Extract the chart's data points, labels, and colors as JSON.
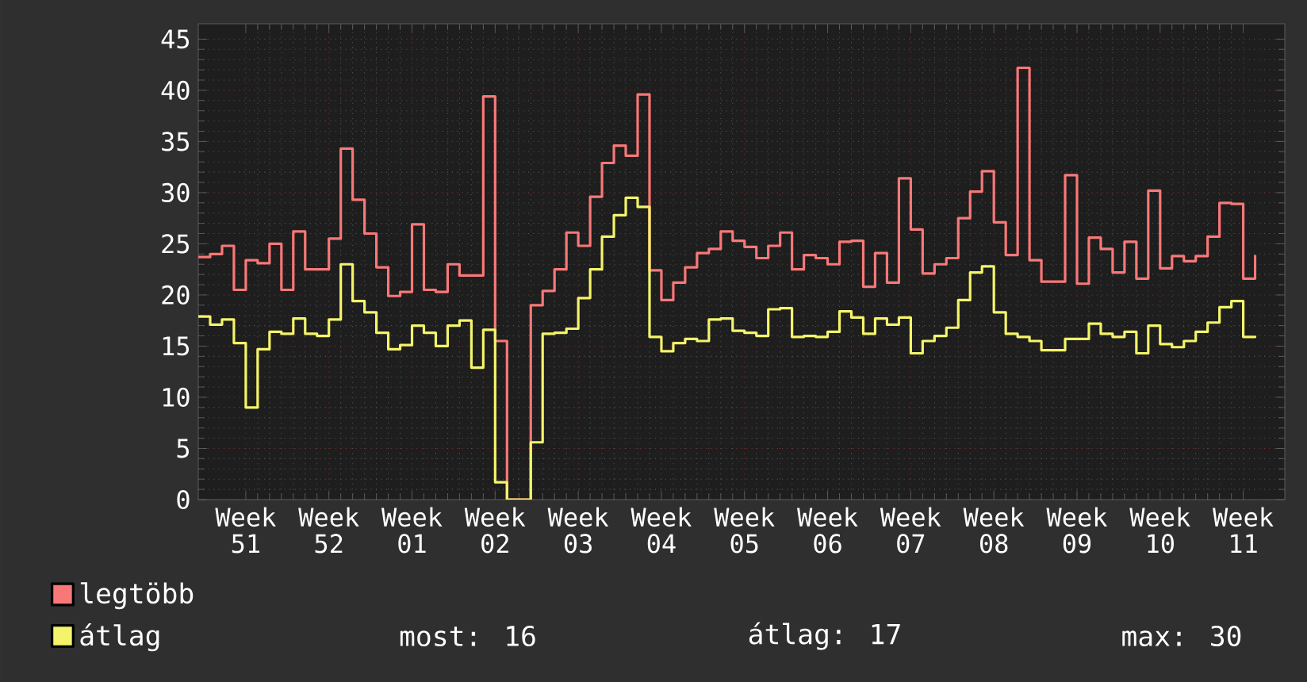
{
  "chart_data": {
    "type": "step",
    "categories": [
      null,
      null,
      null,
      null,
      "Week 51",
      null,
      null,
      null,
      null,
      null,
      null,
      "Week 52",
      null,
      null,
      null,
      null,
      null,
      null,
      "Week 01",
      null,
      null,
      null,
      null,
      null,
      null,
      "Week 02",
      null,
      null,
      null,
      null,
      null,
      null,
      "Week 03",
      null,
      null,
      null,
      null,
      null,
      null,
      "Week 04",
      null,
      null,
      null,
      null,
      null,
      null,
      "Week 05",
      null,
      null,
      null,
      null,
      null,
      null,
      "Week 06",
      null,
      null,
      null,
      null,
      null,
      null,
      "Week 07",
      null,
      null,
      null,
      null,
      null,
      null,
      "Week 08",
      null,
      null,
      null,
      null,
      null,
      null,
      "Week 09",
      null,
      null,
      null,
      null,
      null,
      null,
      "Week 10",
      null,
      null,
      null,
      null,
      null,
      null,
      "Week 11",
      null
    ],
    "series": [
      {
        "name": "legtöbb",
        "color": "#f87878",
        "values": [
          23.7,
          24.0,
          24.8,
          20.5,
          23.4,
          23.1,
          25.0,
          20.5,
          26.2,
          22.5,
          22.5,
          25.5,
          34.3,
          29.3,
          26.0,
          22.7,
          19.9,
          20.3,
          26.9,
          20.5,
          20.3,
          23.0,
          21.9,
          21.9,
          39.4,
          15.5,
          0,
          0,
          19.0,
          20.4,
          22.5,
          26.1,
          24.8,
          29.6,
          32.9,
          34.6,
          33.6,
          39.6,
          22.4,
          19.5,
          21.2,
          22.7,
          24.1,
          24.5,
          26.2,
          25.3,
          24.7,
          23.6,
          24.8,
          26.1,
          22.5,
          23.9,
          23.6,
          23.0,
          25.2,
          25.3,
          20.8,
          24.1,
          21.2,
          31.4,
          26.4,
          22.1,
          23.0,
          23.6,
          27.5,
          30.1,
          32.1,
          27.1,
          23.9,
          42.2,
          23.4,
          21.3,
          21.3,
          31.7,
          21.1,
          25.6,
          24.5,
          22.2,
          25.2,
          21.6,
          30.2,
          22.6,
          23.8,
          23.3,
          23.8,
          25.7,
          29.0,
          28.9,
          21.6,
          23.9
        ]
      },
      {
        "name": "átlag",
        "color": "#f4f46a",
        "values": [
          17.9,
          17.1,
          17.6,
          15.3,
          9.0,
          14.7,
          16.4,
          16.2,
          17.7,
          16.2,
          16.0,
          17.6,
          23.0,
          19.4,
          18.3,
          16.3,
          14.7,
          15.1,
          17.0,
          16.3,
          15.0,
          17.0,
          17.5,
          12.9,
          16.6,
          1.7,
          0,
          0,
          5.6,
          16.2,
          16.3,
          16.7,
          19.7,
          22.5,
          25.7,
          27.8,
          29.5,
          28.6,
          15.9,
          14.5,
          15.3,
          15.7,
          15.5,
          17.6,
          17.7,
          16.5,
          16.3,
          16.0,
          18.6,
          18.7,
          15.9,
          16.0,
          15.9,
          16.4,
          18.4,
          17.8,
          16.2,
          17.7,
          17.1,
          17.8,
          14.3,
          15.5,
          16.0,
          16.8,
          19.5,
          22.2,
          22.8,
          18.3,
          16.2,
          15.9,
          15.5,
          14.6,
          14.6,
          15.7,
          15.7,
          17.2,
          16.2,
          15.9,
          16.4,
          14.3,
          17.0,
          15.2,
          14.9,
          15.5,
          16.4,
          17.3,
          18.8,
          19.4,
          15.9,
          16.0
        ]
      }
    ],
    "ylim": [
      0,
      46.5
    ],
    "yticks": [
      0,
      5,
      10,
      15,
      20,
      25,
      30,
      35,
      40,
      45
    ],
    "grid": true,
    "legend": "bottom left",
    "annotations": [
      "most: 16",
      "átlag: 17",
      "max: 30"
    ]
  }
}
